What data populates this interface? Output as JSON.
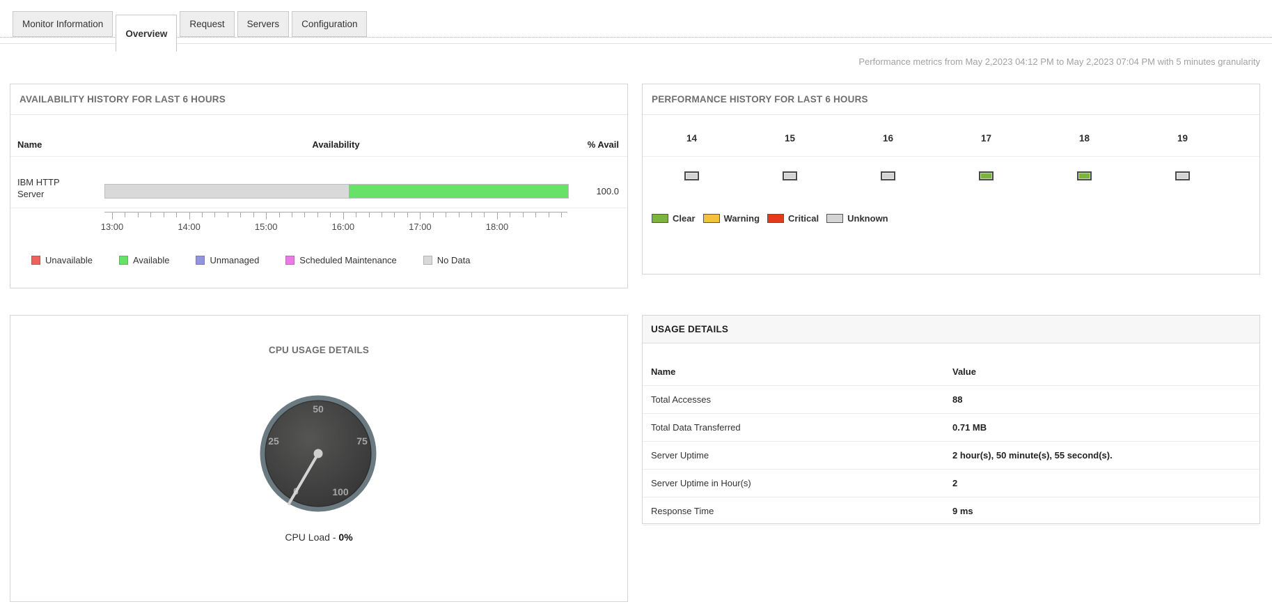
{
  "tabs": {
    "items": [
      {
        "label": "Monitor Information",
        "active": false
      },
      {
        "label": "Overview",
        "active": true
      },
      {
        "label": "Request",
        "active": false
      },
      {
        "label": "Servers",
        "active": false
      },
      {
        "label": "Configuration",
        "active": false
      }
    ]
  },
  "info_line": "Performance metrics from May 2,2023 04:12 PM to May 2,2023 07:04 PM with 5 minutes granularity",
  "availability": {
    "title": "AVAILABILITY HISTORY FOR LAST 6 HOURS",
    "columns": {
      "name": "Name",
      "availability": "Availability",
      "avail_pct": "% Avail"
    },
    "row": {
      "name": "IBM HTTP Server",
      "value": "100.0",
      "segments": [
        {
          "status": "No Data",
          "color": "#d9d9d9",
          "percent": 52.6
        },
        {
          "status": "Available",
          "color": "#68e168",
          "percent": 47.4
        }
      ]
    },
    "axis": {
      "labels": [
        "13:00",
        "14:00",
        "15:00",
        "16:00",
        "17:00",
        "18:00"
      ]
    },
    "legend": [
      {
        "label": "Unavailable",
        "color": "#ef615d"
      },
      {
        "label": "Available",
        "color": "#68e168"
      },
      {
        "label": "Unmanaged",
        "color": "#9394e0"
      },
      {
        "label": "Scheduled Maintenance",
        "color": "#ea7ae5"
      },
      {
        "label": "No Data",
        "color": "#d9d9d9"
      }
    ]
  },
  "performance": {
    "title": "PERFORMANCE HISTORY FOR LAST 6 HOURS",
    "hours": [
      {
        "label": "14",
        "status": "Unknown"
      },
      {
        "label": "15",
        "status": "Unknown"
      },
      {
        "label": "16",
        "status": "Unknown"
      },
      {
        "label": "17",
        "status": "Clear"
      },
      {
        "label": "18",
        "status": "Clear"
      },
      {
        "label": "19",
        "status": "Unknown"
      }
    ],
    "status_colors": {
      "Clear": "#7cb53e",
      "Warning": "#f3c13c",
      "Critical": "#e23b1a",
      "Unknown": "#d4d4d4"
    },
    "legend": [
      {
        "label": "Clear",
        "color": "#7cb53e"
      },
      {
        "label": "Warning",
        "color": "#f3c13c"
      },
      {
        "label": "Critical",
        "color": "#e23b1a"
      },
      {
        "label": "Unknown",
        "color": "#d4d4d4"
      }
    ]
  },
  "cpu": {
    "title": "CPU USAGE DETAILS",
    "gauge": {
      "ticks": [
        "0",
        "25",
        "50",
        "75",
        "100"
      ],
      "value": 0
    },
    "caption_prefix": "CPU Load - ",
    "caption_value": "0%"
  },
  "usage": {
    "title": "USAGE DETAILS",
    "columns": {
      "name": "Name",
      "value": "Value"
    },
    "rows": [
      [
        "Total Accesses",
        "88"
      ],
      [
        "Total Data Transferred",
        "0.71 MB"
      ],
      [
        "Server Uptime",
        "2 hour(s), 50 minute(s), 55 second(s)."
      ],
      [
        "Server Uptime in Hour(s)",
        "2"
      ],
      [
        "Response Time",
        "9 ms"
      ]
    ]
  }
}
